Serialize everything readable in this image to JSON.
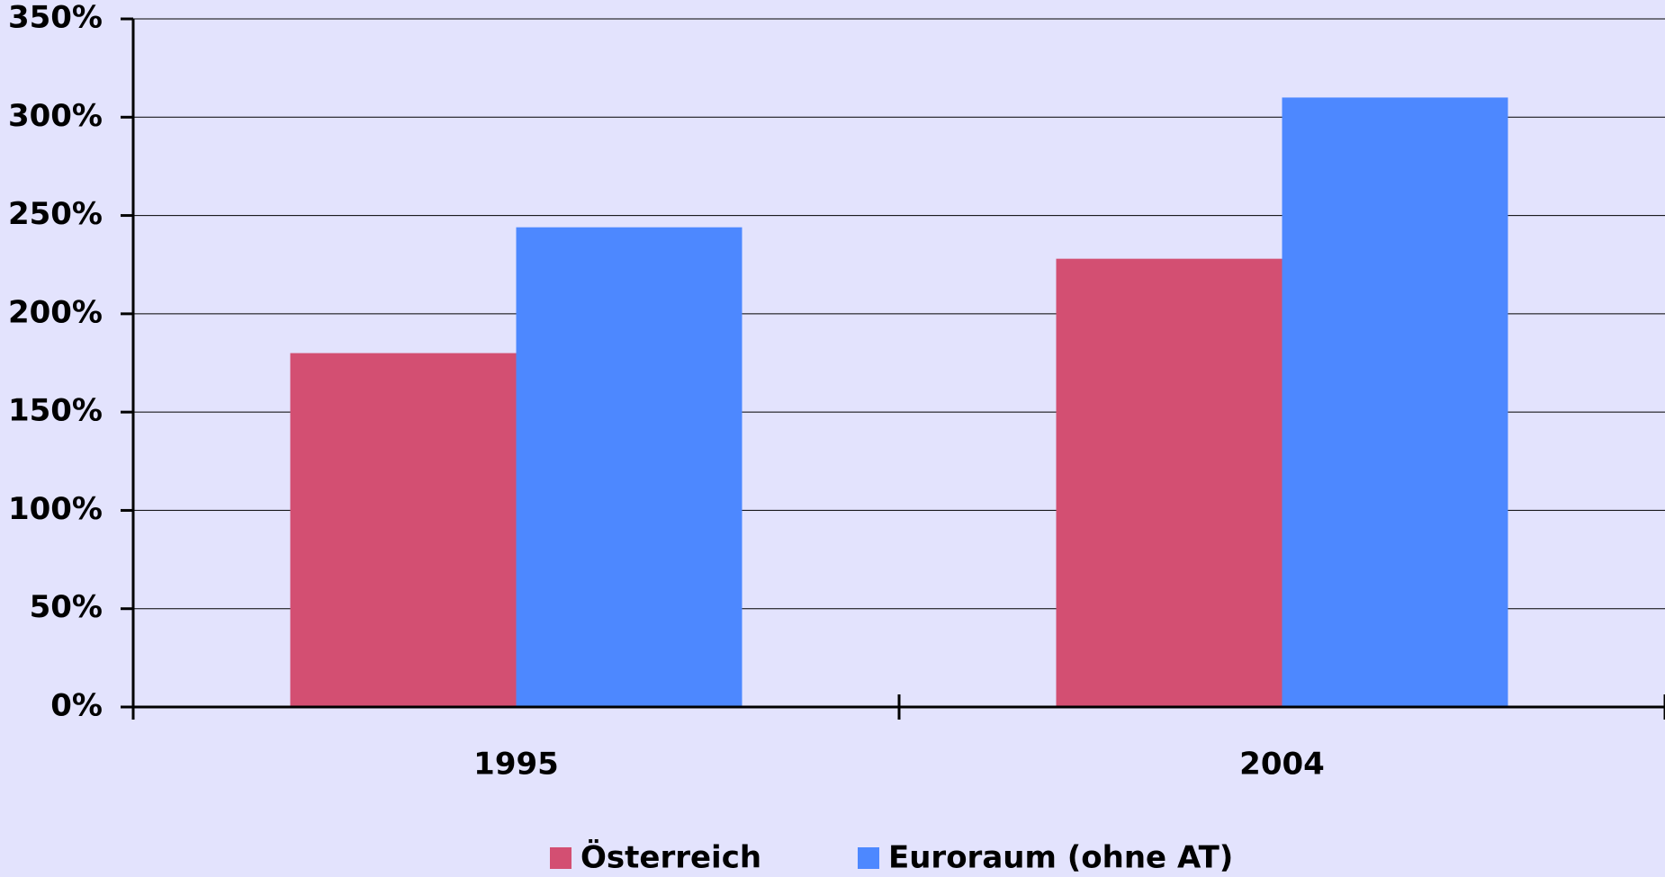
{
  "chart_data": {
    "type": "bar",
    "categories": [
      "1995",
      "2004"
    ],
    "series": [
      {
        "name": "Österreich",
        "color": "#d34f72",
        "values": [
          180,
          228
        ]
      },
      {
        "name": "Euroraum (ohne AT)",
        "color": "#4d88ff",
        "values": [
          244,
          310
        ]
      }
    ],
    "ylim": [
      0,
      350
    ],
    "yticks": [
      {
        "value": 0,
        "label": "0%"
      },
      {
        "value": 50,
        "label": "50%"
      },
      {
        "value": 100,
        "label": "100%"
      },
      {
        "value": 150,
        "label": "150%"
      },
      {
        "value": 200,
        "label": "200%"
      },
      {
        "value": 250,
        "label": "250%"
      },
      {
        "value": 300,
        "label": "300%"
      },
      {
        "value": 350,
        "label": "350%"
      }
    ],
    "grid": true,
    "legend": "bottom"
  }
}
